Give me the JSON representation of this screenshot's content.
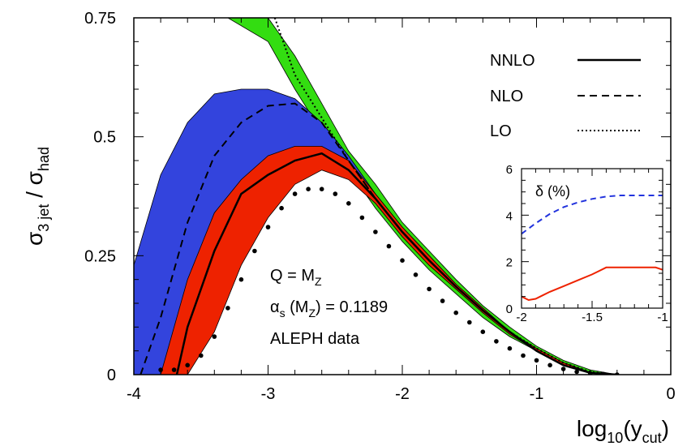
{
  "chart_data": {
    "type": "line",
    "ylabel": {
      "base": "σ",
      "sub1": "3 jet",
      "sep": " / σ",
      "sub2": "had"
    },
    "xlabel": {
      "pre": "log",
      "sub1": "10",
      "mid": "(y",
      "sub2": "cut",
      "post": ")"
    },
    "xlim": [
      -4,
      0
    ],
    "ylim": [
      0,
      0.75
    ],
    "x_ticks": [
      "-4",
      "-3",
      "-2",
      "-1",
      "0"
    ],
    "y_ticks": [
      "0",
      "0.25",
      "0.5",
      "0.75"
    ],
    "legend": {
      "placement": "top-right",
      "entries": [
        {
          "label": "NNLO",
          "style": "solid"
        },
        {
          "label": "NLO",
          "style": "dashed"
        },
        {
          "label": "LO",
          "style": "dotted"
        }
      ]
    },
    "annotations": {
      "q_label": {
        "base": "Q = M",
        "sub": "Z"
      },
      "alpha_label": {
        "base": "α",
        "sub": "s",
        "rest": " (M",
        "sub2": "Z",
        "rest2": ") = 0.1189"
      },
      "data_label": "ALEPH data"
    },
    "colors": {
      "lo_band": "#33dd11",
      "nlo_band": "#3344dd",
      "nnlo_band": "#ee2200",
      "inset_dashed": "#2233dd",
      "inset_solid": "#ee2200"
    },
    "bands": [
      {
        "name": "LO",
        "x": [
          -3.3,
          -3.0,
          -2.8,
          -2.6,
          -2.4,
          -2.2,
          -2.0,
          -1.8,
          -1.6,
          -1.4,
          -1.2,
          -1.0,
          -0.8,
          -0.6,
          -0.4
        ],
        "upper": [
          0.75,
          0.75,
          0.67,
          0.57,
          0.47,
          0.4,
          0.32,
          0.26,
          0.2,
          0.145,
          0.1,
          0.06,
          0.03,
          0.01,
          0.0
        ],
        "lower": [
          0.75,
          0.7,
          0.6,
          0.51,
          0.43,
          0.35,
          0.28,
          0.22,
          0.17,
          0.12,
          0.08,
          0.05,
          0.02,
          0.005,
          0.0
        ]
      },
      {
        "name": "NLO",
        "x": [
          -4.0,
          -3.8,
          -3.6,
          -3.4,
          -3.2,
          -3.0,
          -2.8,
          -2.6,
          -2.4,
          -2.2,
          -2.0,
          -1.8,
          -1.6,
          -1.4,
          -1.2,
          -1.0,
          -0.8,
          -0.6
        ],
        "upper": [
          0.23,
          0.42,
          0.53,
          0.59,
          0.6,
          0.6,
          0.58,
          0.53,
          0.46,
          0.38,
          0.31,
          0.25,
          0.19,
          0.14,
          0.09,
          0.055,
          0.025,
          0.005
        ],
        "lower": [
          0.0,
          0.0,
          0.0,
          0.12,
          0.27,
          0.37,
          0.45,
          0.45,
          0.42,
          0.36,
          0.29,
          0.23,
          0.18,
          0.13,
          0.085,
          0.05,
          0.02,
          0.003
        ]
      },
      {
        "name": "NNLO",
        "x": [
          -3.8,
          -3.6,
          -3.4,
          -3.2,
          -3.0,
          -2.8,
          -2.6,
          -2.4,
          -2.2,
          -2.0,
          -1.8,
          -1.6,
          -1.4,
          -1.2,
          -1.0,
          -0.8,
          -0.6
        ],
        "upper": [
          0.0,
          0.2,
          0.34,
          0.41,
          0.46,
          0.48,
          0.48,
          0.45,
          0.38,
          0.31,
          0.25,
          0.19,
          0.14,
          0.09,
          0.055,
          0.025,
          0.005
        ],
        "lower": [
          0.0,
          0.0,
          0.09,
          0.23,
          0.33,
          0.4,
          0.43,
          0.41,
          0.36,
          0.29,
          0.23,
          0.18,
          0.13,
          0.085,
          0.05,
          0.02,
          0.003
        ]
      }
    ],
    "series": [
      {
        "name": "NNLO",
        "x": [
          -3.68,
          -3.6,
          -3.4,
          -3.2,
          -3.0,
          -2.8,
          -2.6,
          -2.4,
          -2.2,
          -2.0,
          -1.8,
          -1.6,
          -1.4,
          -1.2,
          -1.0,
          -0.8,
          -0.6,
          -0.4
        ],
        "y": [
          0.0,
          0.1,
          0.26,
          0.38,
          0.42,
          0.45,
          0.465,
          0.43,
          0.37,
          0.3,
          0.24,
          0.185,
          0.135,
          0.09,
          0.05,
          0.02,
          0.004,
          0.0
        ]
      },
      {
        "name": "NLO",
        "x": [
          -3.95,
          -3.8,
          -3.6,
          -3.4,
          -3.2,
          -3.0,
          -2.8,
          -2.6,
          -2.4,
          -2.2,
          -2.0,
          -1.8,
          -1.6,
          -1.4,
          -1.2,
          -1.0,
          -0.8,
          -0.6,
          -0.4
        ],
        "y": [
          0.0,
          0.12,
          0.32,
          0.46,
          0.53,
          0.565,
          0.57,
          0.53,
          0.45,
          0.37,
          0.3,
          0.24,
          0.185,
          0.135,
          0.09,
          0.05,
          0.02,
          0.004,
          0.0
        ]
      },
      {
        "name": "LO",
        "x": [
          -2.95,
          -2.8,
          -2.6,
          -2.4,
          -2.2,
          -2.0,
          -1.8,
          -1.6,
          -1.4,
          -1.2,
          -1.0,
          -0.8,
          -0.6,
          -0.4
        ],
        "y": [
          0.75,
          0.63,
          0.54,
          0.45,
          0.37,
          0.3,
          0.24,
          0.185,
          0.135,
          0.09,
          0.055,
          0.025,
          0.006,
          0.0
        ]
      }
    ],
    "data_points": {
      "name": "ALEPH data",
      "x": [
        -3.8,
        -3.7,
        -3.6,
        -3.5,
        -3.4,
        -3.3,
        -3.2,
        -3.1,
        -3.0,
        -2.9,
        -2.8,
        -2.7,
        -2.6,
        -2.5,
        -2.4,
        -2.3,
        -2.2,
        -2.1,
        -2.0,
        -1.9,
        -1.8,
        -1.7,
        -1.6,
        -1.5,
        -1.4,
        -1.3,
        -1.2,
        -1.1,
        -1.0,
        -0.9,
        -0.8,
        -0.7,
        -0.6,
        -0.5,
        -0.4
      ],
      "y": [
        0.01,
        0.01,
        0.02,
        0.04,
        0.08,
        0.14,
        0.2,
        0.26,
        0.31,
        0.35,
        0.38,
        0.39,
        0.39,
        0.38,
        0.36,
        0.33,
        0.3,
        0.27,
        0.24,
        0.21,
        0.18,
        0.155,
        0.13,
        0.11,
        0.09,
        0.07,
        0.055,
        0.04,
        0.03,
        0.02,
        0.012,
        0.006,
        0.003,
        0.001,
        0.0
      ]
    },
    "inset": {
      "ylabel": "δ (%)",
      "xlim": [
        -2,
        -1
      ],
      "ylim": [
        0,
        6
      ],
      "x_ticks": [
        "-2",
        "-1.5",
        "-1"
      ],
      "y_ticks": [
        "0",
        "2",
        "4",
        "6"
      ],
      "series": [
        {
          "style": "dashed",
          "x": [
            -2.0,
            -1.9,
            -1.8,
            -1.7,
            -1.6,
            -1.5,
            -1.4,
            -1.3,
            -1.2,
            -1.1,
            -1.0
          ],
          "y": [
            3.2,
            3.65,
            4.05,
            4.35,
            4.55,
            4.7,
            4.8,
            4.85,
            4.85,
            4.85,
            4.85
          ]
        },
        {
          "style": "solid",
          "x": [
            -2.0,
            -1.95,
            -1.9,
            -1.85,
            -1.8,
            -1.7,
            -1.6,
            -1.5,
            -1.45,
            -1.4,
            -1.35,
            -1.3,
            -1.2,
            -1.1,
            -1.05,
            -1.0
          ],
          "y": [
            0.5,
            0.35,
            0.4,
            0.55,
            0.7,
            0.95,
            1.2,
            1.45,
            1.6,
            1.75,
            1.75,
            1.75,
            1.75,
            1.75,
            1.75,
            1.65
          ]
        }
      ]
    }
  }
}
